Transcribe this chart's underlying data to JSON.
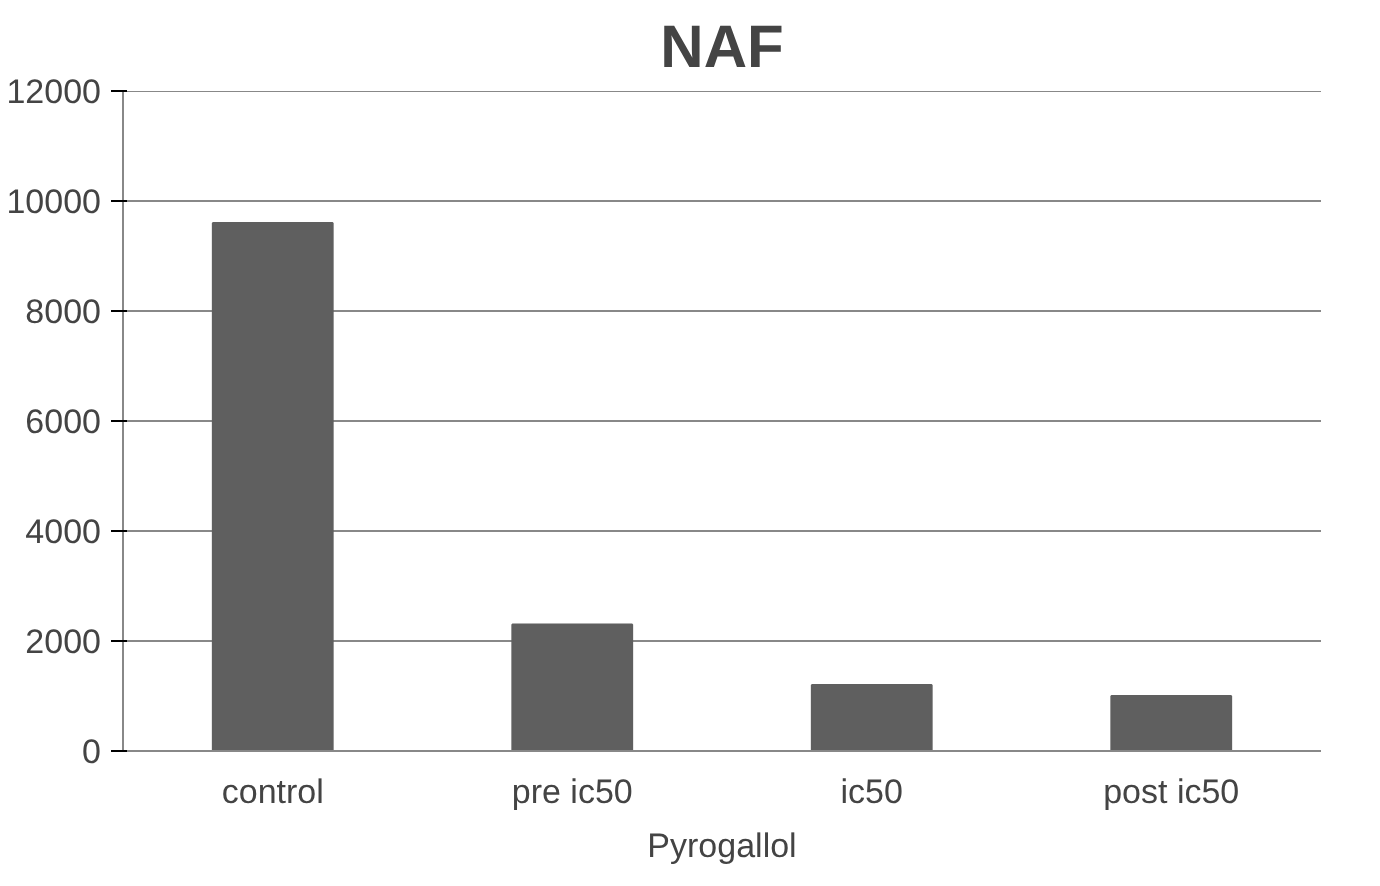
{
  "chart_data": {
    "type": "bar",
    "title": "NAF",
    "xlabel": "Pyrogallol",
    "categories": [
      "control",
      "pre ic50",
      "ic50",
      "post ic50"
    ],
    "values": [
      9600,
      2300,
      1200,
      1000
    ],
    "color": "#5f5f5f",
    "ylim": [
      0,
      12000
    ],
    "yticks": [
      0,
      2000,
      4000,
      6000,
      8000,
      10000,
      12000
    ],
    "grid": "y"
  }
}
